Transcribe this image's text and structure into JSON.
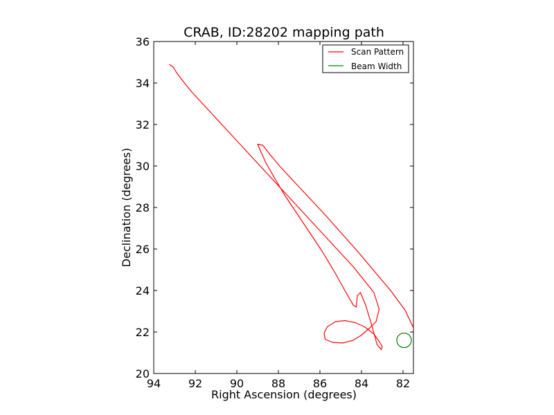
{
  "chart_data": {
    "type": "line",
    "title": "CRAB, ID:28202 mapping path",
    "xlabel": "Right Ascension (degrees)",
    "ylabel": "Declination (degrees)",
    "xlim": [
      94,
      81.5
    ],
    "ylim": [
      20,
      36
    ],
    "x_ticks": [
      94,
      92,
      90,
      88,
      86,
      84,
      82
    ],
    "y_ticks": [
      20,
      22,
      24,
      26,
      28,
      30,
      32,
      34,
      36
    ],
    "grid": false,
    "legend_position": "top-right",
    "series": [
      {
        "name": "Scan Pattern",
        "color": "#ff0000",
        "x": [
          93.25,
          93.05,
          92.9,
          92.6,
          92.2,
          91.6,
          91.0,
          90.4,
          89.8,
          89.2,
          88.6,
          88.0,
          87.4,
          86.8,
          86.2,
          85.6,
          85.0,
          84.4,
          83.8,
          83.4,
          83.15,
          83.3,
          83.6,
          84.0,
          84.4,
          84.9,
          85.4,
          85.75,
          85.8,
          85.65,
          85.25,
          84.8,
          84.3,
          83.85,
          83.4,
          83.15,
          83.0,
          83.05,
          83.25,
          83.5,
          83.8,
          84.05,
          84.2,
          84.25,
          84.4,
          84.8,
          85.3,
          85.9,
          86.5,
          87.1,
          87.7,
          88.2,
          88.6,
          88.85,
          89.0,
          88.75,
          88.4,
          87.9,
          87.2,
          86.5,
          85.8,
          85.0,
          84.2,
          83.4,
          82.6,
          81.9,
          81.5
        ],
        "y": [
          34.9,
          34.75,
          34.5,
          34.1,
          33.6,
          32.95,
          32.3,
          31.65,
          31.0,
          30.35,
          29.7,
          29.05,
          28.4,
          27.75,
          27.1,
          26.45,
          25.8,
          25.15,
          24.4,
          23.9,
          23.1,
          22.5,
          22.2,
          21.85,
          21.6,
          21.47,
          21.5,
          21.65,
          21.95,
          22.25,
          22.5,
          22.55,
          22.45,
          22.25,
          21.9,
          21.55,
          21.3,
          21.15,
          21.4,
          22.3,
          23.3,
          23.9,
          23.75,
          23.2,
          23.3,
          24.0,
          24.9,
          25.9,
          26.8,
          27.7,
          28.6,
          29.45,
          30.15,
          30.7,
          31.05,
          31.0,
          30.55,
          29.95,
          29.2,
          28.45,
          27.7,
          26.8,
          25.9,
          24.95,
          24.0,
          23.05,
          22.2
        ]
      },
      {
        "name": "Beam Width",
        "color": "#008000",
        "center": [
          81.95,
          21.6
        ],
        "radius": 0.35
      }
    ]
  }
}
